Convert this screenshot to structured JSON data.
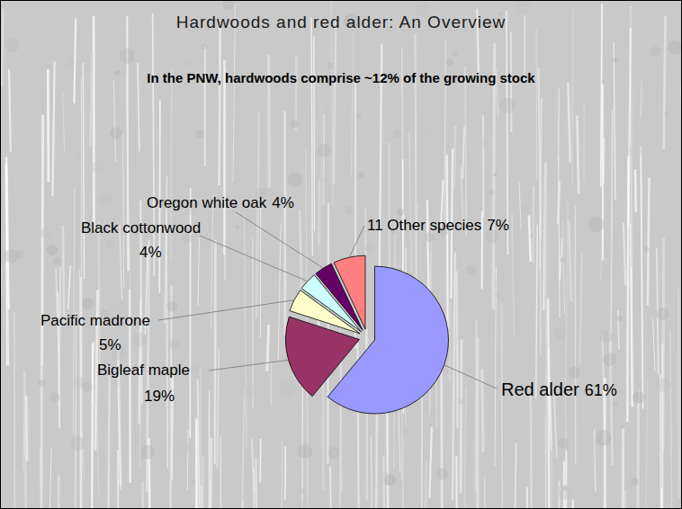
{
  "chart_data": {
    "type": "pie",
    "title": "Hardwoods and red alder: An Overview",
    "subtitle": "In the PNW, hardwoods comprise ~12% of the growing stock",
    "categories": [
      "Red alder",
      "Bigleaf maple",
      "Pacific madrone",
      "Black cottonwood",
      "Oregon white oak",
      "11 Other species"
    ],
    "values": [
      61,
      19,
      5,
      4,
      4,
      7
    ],
    "value_labels": [
      "61%",
      "19%",
      "5%",
      "4%",
      "4%",
      "7%"
    ],
    "colors": [
      "#9999ff",
      "#993366",
      "#ffffcc",
      "#ccffff",
      "#660066",
      "#ff8080"
    ],
    "data_labels": true
  }
}
